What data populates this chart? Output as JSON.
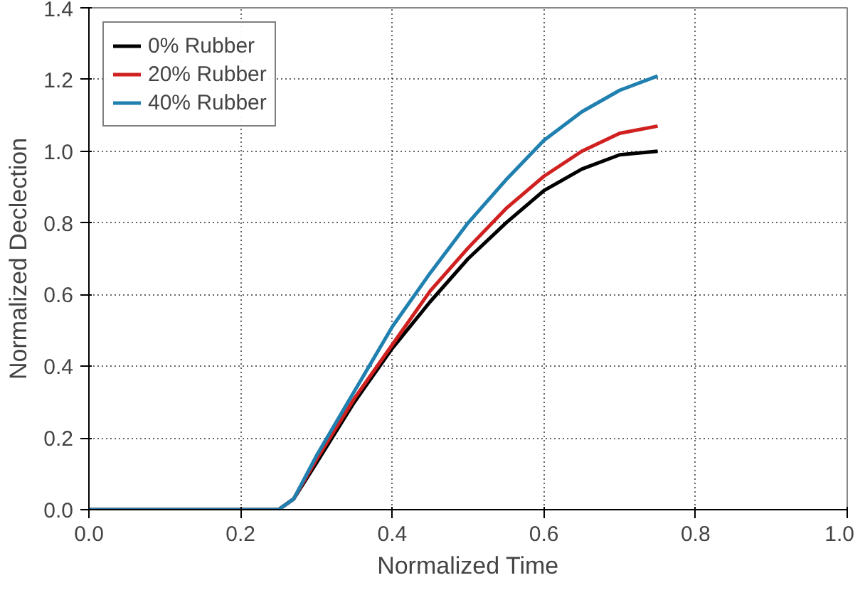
{
  "chart_data": {
    "type": "line",
    "xlabel": "Normalized Time",
    "ylabel": "Normalized Declection",
    "xlim": [
      0,
      1
    ],
    "ylim": [
      0,
      1.4
    ],
    "xticks": [
      {
        "value": 0,
        "label": "0.0"
      },
      0.2,
      0.4,
      0.6,
      0.8,
      {
        "value": 1,
        "label": "1.0"
      }
    ],
    "yticks": [
      {
        "value": 0,
        "label": "0.0"
      },
      0.2,
      0.4,
      0.6,
      0.8,
      {
        "value": 1,
        "label": "1.0"
      },
      1.2,
      1.4
    ],
    "grid": true,
    "legend": "top left",
    "line_style": "solid",
    "marker": "none",
    "x": [
      0,
      0.25,
      0.27,
      0.3,
      0.35,
      0.4,
      0.45,
      0.5,
      0.55,
      0.6,
      0.65,
      0.7,
      0.75
    ],
    "series": [
      {
        "name": "0% Rubber",
        "color": "#000000",
        "values": [
          0,
          0,
          0.03,
          0.13,
          0.3,
          0.45,
          0.58,
          0.7,
          0.8,
          0.89,
          0.95,
          0.99,
          1.0
        ]
      },
      {
        "name": "20% Rubber",
        "color": "#d02020",
        "values": [
          0,
          0,
          0.03,
          0.14,
          0.31,
          0.46,
          0.61,
          0.73,
          0.84,
          0.93,
          1.0,
          1.05,
          1.07
        ]
      },
      {
        "name": "40% Rubber",
        "color": "#2080b0",
        "values": [
          0,
          0,
          0.03,
          0.15,
          0.33,
          0.51,
          0.66,
          0.8,
          0.92,
          1.03,
          1.11,
          1.17,
          1.21
        ]
      }
    ]
  }
}
